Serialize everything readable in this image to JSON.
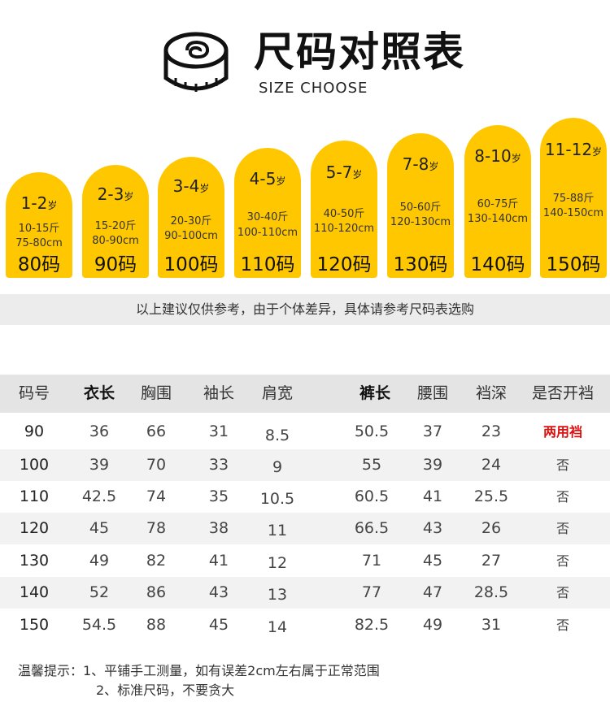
{
  "header": {
    "title": "尺码对照表",
    "subtitle": "SIZE CHOOSE",
    "icon": "measuring-tape-icon"
  },
  "sizes": [
    {
      "age": "1-2",
      "age_unit": "岁",
      "weight": "10-15斤",
      "height": "75-80cm",
      "size": "80码"
    },
    {
      "age": "2-3",
      "age_unit": "岁",
      "weight": "15-20斤",
      "height": "80-90cm",
      "size": "90码"
    },
    {
      "age": "3-4",
      "age_unit": "岁",
      "weight": "20-30斤",
      "height": "90-100cm",
      "size": "100码"
    },
    {
      "age": "4-5",
      "age_unit": "岁",
      "weight": "30-40斤",
      "height": "100-110cm",
      "size": "110码"
    },
    {
      "age": "5-7",
      "age_unit": "岁",
      "weight": "40-50斤",
      "height": "110-120cm",
      "size": "120码"
    },
    {
      "age": "7-8",
      "age_unit": "岁",
      "weight": "50-60斤",
      "height": "120-130cm",
      "size": "130码"
    },
    {
      "age": "8-10",
      "age_unit": "岁",
      "weight": "60-75斤",
      "height": "130-140cm",
      "size": "140码"
    },
    {
      "age": "11-12",
      "age_unit": "岁",
      "weight": "75-88斤",
      "height": "140-150cm",
      "size": "150码"
    }
  ],
  "note": "以上建议仅供参考，由于个体差异，具体请参考尺码表选购",
  "table": {
    "headers": [
      "码号",
      "衣长",
      "胸围",
      "袖长",
      "肩宽",
      "裤长",
      "腰围",
      "裆深",
      "是否开裆"
    ],
    "rows": [
      [
        "90",
        "36",
        "66",
        "31",
        "8.5",
        "50.5",
        "37",
        "23",
        "两用裆"
      ],
      [
        "100",
        "39",
        "70",
        "33",
        "9",
        "55",
        "39",
        "24",
        "否"
      ],
      [
        "110",
        "42.5",
        "74",
        "35",
        "10.5",
        "60.5",
        "41",
        "25.5",
        "否"
      ],
      [
        "120",
        "45",
        "78",
        "38",
        "11",
        "66.5",
        "43",
        "26",
        "否"
      ],
      [
        "130",
        "49",
        "82",
        "41",
        "12",
        "71",
        "45",
        "27",
        "否"
      ],
      [
        "140",
        "52",
        "86",
        "43",
        "13",
        "77",
        "47",
        "28.5",
        "否"
      ],
      [
        "150",
        "54.5",
        "88",
        "45",
        "14",
        "82.5",
        "49",
        "31",
        "否"
      ]
    ]
  },
  "tips": {
    "line1": "温馨提示：1、平铺手工测量，如有误差2cm左右属于正常范围",
    "line2": "2、标准尺码，不要贪大"
  },
  "colors": {
    "accent": "#ffc700",
    "highlight": "#e01010",
    "band": "#ececec",
    "table_header": "#e4e4e4",
    "row_shade": "#f2f2f2"
  }
}
